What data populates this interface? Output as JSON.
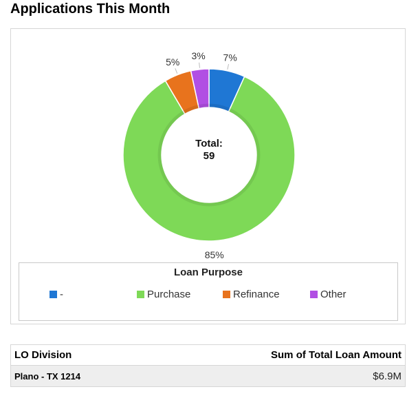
{
  "title": "Applications This Month",
  "chart_data": {
    "type": "pie",
    "categories": [
      "-",
      "Purchase",
      "Refinance",
      "Other"
    ],
    "values": [
      4,
      50,
      3,
      2
    ],
    "percent_labels": [
      "7%",
      "85%",
      "5%",
      "3%"
    ],
    "colors": [
      "#1f77d4",
      "#7ed957",
      "#e8731d",
      "#b14fe3"
    ],
    "center_label": "Total:",
    "center_value": "59",
    "legend_title": "Loan Purpose",
    "legend_placement": "bottom"
  },
  "table": {
    "headers": [
      "LO Division",
      "Sum of Total Loan Amount"
    ],
    "rows": [
      [
        "Plano - TX 1214",
        "$6.9M"
      ]
    ]
  }
}
